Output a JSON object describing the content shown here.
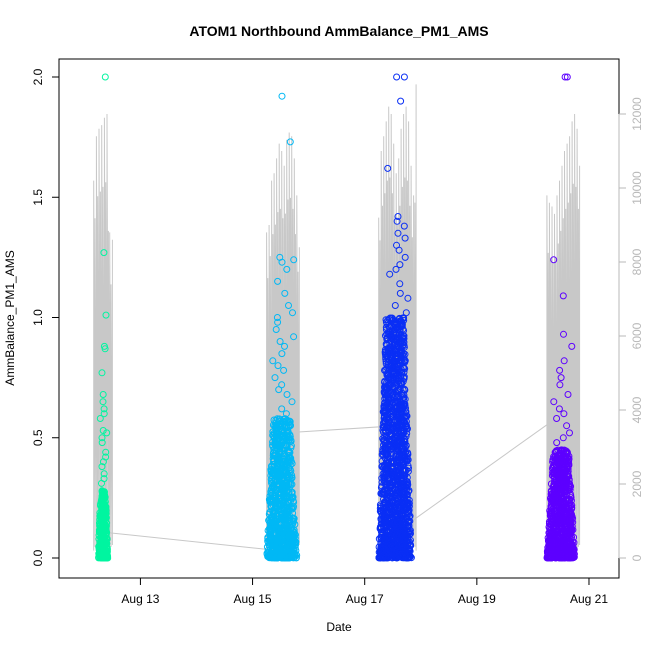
{
  "chart_data": {
    "type": "scatter",
    "title": "ATOM1 Northbound AmmBalance_PM1_AMS",
    "xlabel": "Date",
    "ylabel": "AmmBalance_PM1_AMS",
    "x_axis_type": "date",
    "xlim": [
      "2024-08-11T20:00",
      "2024-08-21T06:00"
    ],
    "x_ticks": [
      {
        "date": "2024-08-13",
        "label": "Aug 13"
      },
      {
        "date": "2024-08-15",
        "label": "Aug 15"
      },
      {
        "date": "2024-08-17",
        "label": "Aug 17"
      },
      {
        "date": "2024-08-19",
        "label": "Aug 19"
      },
      {
        "date": "2024-08-21",
        "label": "Aug 21"
      }
    ],
    "ylim": [
      0,
      2.0
    ],
    "y_ticks": [
      0.0,
      0.5,
      1.0,
      1.5,
      2.0
    ],
    "y_tick_labels": [
      "0.0",
      "0.5",
      "1.0",
      "1.5",
      "2.0"
    ],
    "y2lim": [
      0,
      13000
    ],
    "y2_ticks": [
      0,
      2000,
      4000,
      6000,
      8000,
      10000,
      12000
    ],
    "y2_tick_labels": [
      "0",
      "2000",
      "4000",
      "6000",
      "8000",
      "10000",
      "12000"
    ],
    "y2_color": "#b8b8b8",
    "grid": false,
    "marker": "open-circle",
    "point_clusters": [
      {
        "start": "2024-08-12T06:00",
        "end": "2024-08-12T10:00",
        "color": "#00f5a0",
        "dense_max": 0.28,
        "n_dense": 380,
        "outliers": [
          0.31,
          0.33,
          0.35,
          0.38,
          0.4,
          0.42,
          0.44,
          0.48,
          0.5,
          0.52,
          0.53,
          0.58,
          0.6,
          0.62,
          0.65,
          0.68,
          0.77,
          0.87,
          0.88,
          1.01,
          1.27,
          2.0
        ]
      },
      {
        "start": "2024-08-15T06:00",
        "end": "2024-08-15T19:00",
        "color": "#00b8f5",
        "dense_max": 0.58,
        "n_dense": 900,
        "outliers": [
          0.6,
          0.62,
          0.65,
          0.68,
          0.7,
          0.72,
          0.75,
          0.78,
          0.8,
          0.82,
          0.85,
          0.88,
          0.9,
          0.92,
          0.95,
          0.98,
          1.0,
          1.02,
          1.05,
          1.1,
          1.15,
          1.2,
          1.23,
          1.24,
          1.25,
          1.73,
          1.92
        ]
      },
      {
        "start": "2024-08-17T06:00",
        "end": "2024-08-17T20:00",
        "color": "#0a2ff5",
        "dense_max": 1.0,
        "n_dense": 1600,
        "outliers": [
          1.02,
          1.05,
          1.08,
          1.1,
          1.14,
          1.18,
          1.2,
          1.22,
          1.25,
          1.28,
          1.3,
          1.33,
          1.35,
          1.38,
          1.4,
          1.42,
          1.62,
          1.9,
          2.0,
          2.0
        ]
      },
      {
        "start": "2024-08-20T06:00",
        "end": "2024-08-20T18:00",
        "color": "#5d00ff",
        "dense_max": 0.45,
        "n_dense": 900,
        "outliers": [
          0.48,
          0.5,
          0.52,
          0.55,
          0.58,
          0.6,
          0.62,
          0.65,
          0.68,
          0.72,
          0.75,
          0.78,
          0.82,
          0.88,
          0.93,
          1.09,
          1.24,
          2.0,
          2.0
        ]
      }
    ],
    "line_series": {
      "color": "#c8c8c8",
      "axis": "right",
      "bursts": [
        {
          "start": "2024-08-12T04:00",
          "end": "2024-08-12T12:00",
          "peaks": [
            10200,
            11400,
            11600,
            11700,
            11900,
            12000,
            8800,
            8600
          ]
        },
        {
          "start": "2024-08-15T06:00",
          "end": "2024-08-15T20:00",
          "peaks": [
            8800,
            9000,
            10200,
            10400,
            10800,
            11200,
            11000,
            10600,
            11300,
            11500,
            11400,
            10800,
            9800,
            8400
          ]
        },
        {
          "start": "2024-08-17T06:00",
          "end": "2024-08-17T22:00",
          "peaks": [
            9200,
            11000,
            11400,
            11800,
            12200,
            12000,
            11200,
            10400,
            10800,
            11600,
            12000,
            12200,
            11800,
            10600,
            9800,
            12800
          ]
        },
        {
          "start": "2024-08-20T06:00",
          "end": "2024-08-20T20:00",
          "peaks": [
            9800,
            9600,
            9500,
            9300,
            9800,
            10200,
            10600,
            11000,
            11200,
            11400,
            11800,
            12000,
            11600,
            10600
          ]
        }
      ],
      "connectors": [
        {
          "from": {
            "date": "2024-08-12T08:00",
            "y": 700
          },
          "to": {
            "date": "2024-08-15T14:00",
            "y": 180
          }
        },
        {
          "from": {
            "date": "2024-08-15T18:00",
            "y": 3400
          },
          "to": {
            "date": "2024-08-17T08:00",
            "y": 3550
          }
        },
        {
          "from": {
            "date": "2024-08-17T18:00",
            "y": 900
          },
          "to": {
            "date": "2024-08-20T06:00",
            "y": 3600
          }
        }
      ]
    }
  }
}
